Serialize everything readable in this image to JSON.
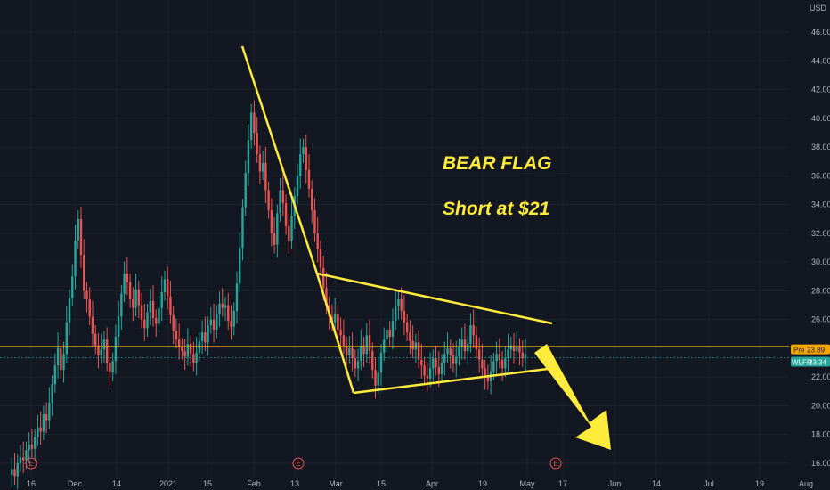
{
  "chart_data": {
    "type": "candlestick",
    "currency": "USD",
    "ylim": [
      15,
      47
    ],
    "yticks": [
      "16.00",
      "18.00",
      "20.00",
      "22.00",
      "24.00",
      "26.00",
      "28.00",
      "30.00",
      "32.00",
      "34.00",
      "36.00",
      "38.00",
      "40.00",
      "42.00",
      "44.00",
      "46.00"
    ],
    "ytick_values": [
      16,
      18,
      20,
      22,
      24,
      26,
      28,
      30,
      32,
      34,
      36,
      38,
      40,
      42,
      44,
      46
    ],
    "xticks": [
      "16",
      "Dec",
      "14",
      "2021",
      "15",
      "Feb",
      "13",
      "Mar",
      "15",
      "Apr",
      "19",
      "May",
      "17",
      "Jun",
      "14",
      "Jul",
      "19",
      "Aug"
    ],
    "grid": true,
    "price_badge": {
      "label": "Pre",
      "value": "23.89",
      "level": 23.89,
      "color": "#f7a600"
    },
    "sym_badge": {
      "label": "WLFR",
      "value": "23.34",
      "level": 23.34,
      "color": "#26a69a"
    },
    "pre_line_level": 24.15,
    "earnings_marker": "E",
    "annotations": [
      "BEAR FLAG",
      "Short at $21"
    ],
    "colors": {
      "up": "#26a69a",
      "down": "#ef5350",
      "drawing": "#ffeb3b",
      "background": "#131722",
      "grid": "#1e222d"
    },
    "series": [
      {
        "name": "candles",
        "values": [
          15.2,
          15.6,
          15.1,
          16.0,
          16.4,
          16.2,
          16.9,
          17.3,
          17.0,
          17.8,
          18.5,
          18.2,
          19.4,
          19.0,
          20.2,
          21.5,
          22.8,
          24.0,
          22.5,
          23.6,
          25.8,
          27.5,
          29.0,
          31.5,
          33.0,
          30.5,
          28.0,
          27.4,
          26.2,
          25.0,
          24.2,
          23.5,
          23.9,
          24.6,
          23.0,
          22.3,
          23.1,
          24.8,
          26.2,
          27.8,
          29.2,
          28.6,
          27.4,
          26.8,
          28.1,
          27.0,
          26.0,
          25.4,
          26.5,
          27.3,
          26.1,
          25.7,
          26.8,
          27.9,
          28.8,
          27.6,
          26.3,
          25.2,
          24.6,
          24.1,
          23.8,
          23.4,
          24.3,
          23.6,
          23.0,
          23.7,
          24.5,
          25.1,
          24.4,
          25.6,
          26.0,
          25.3,
          26.4,
          27.1,
          26.8,
          27.0,
          25.9,
          25.5,
          26.6,
          28.5,
          31.0,
          33.8,
          36.2,
          38.5,
          40.4,
          39.0,
          37.5,
          36.3,
          36.9,
          35.0,
          33.6,
          32.0,
          31.2,
          33.4,
          35.0,
          34.1,
          32.5,
          31.5,
          33.2,
          34.6,
          36.0,
          37.5,
          38.0,
          36.4,
          35.1,
          33.6,
          32.0,
          30.9,
          29.6,
          28.2,
          27.0,
          26.2,
          25.8,
          26.4,
          25.3,
          24.9,
          24.2,
          23.5,
          24.0,
          23.3,
          22.6,
          23.1,
          24.2,
          23.6,
          24.9,
          23.8,
          22.5,
          21.4,
          22.3,
          23.7,
          24.6,
          25.3,
          24.8,
          25.9,
          26.9,
          27.4,
          26.6,
          25.8,
          25.1,
          24.5,
          23.9,
          24.4,
          23.2,
          22.8,
          22.1,
          21.9,
          22.6,
          23.3,
          22.7,
          22.2,
          23.0,
          23.6,
          24.0,
          23.5,
          22.9,
          23.4,
          24.1,
          24.6,
          23.8,
          24.3,
          25.6,
          24.9,
          23.9,
          23.2,
          22.6,
          22.0,
          21.7,
          22.4,
          23.1,
          23.6,
          23.2,
          22.6,
          23.3,
          23.9,
          24.2,
          23.8,
          24.1,
          23.7,
          23.3,
          23.6
        ]
      }
    ]
  }
}
